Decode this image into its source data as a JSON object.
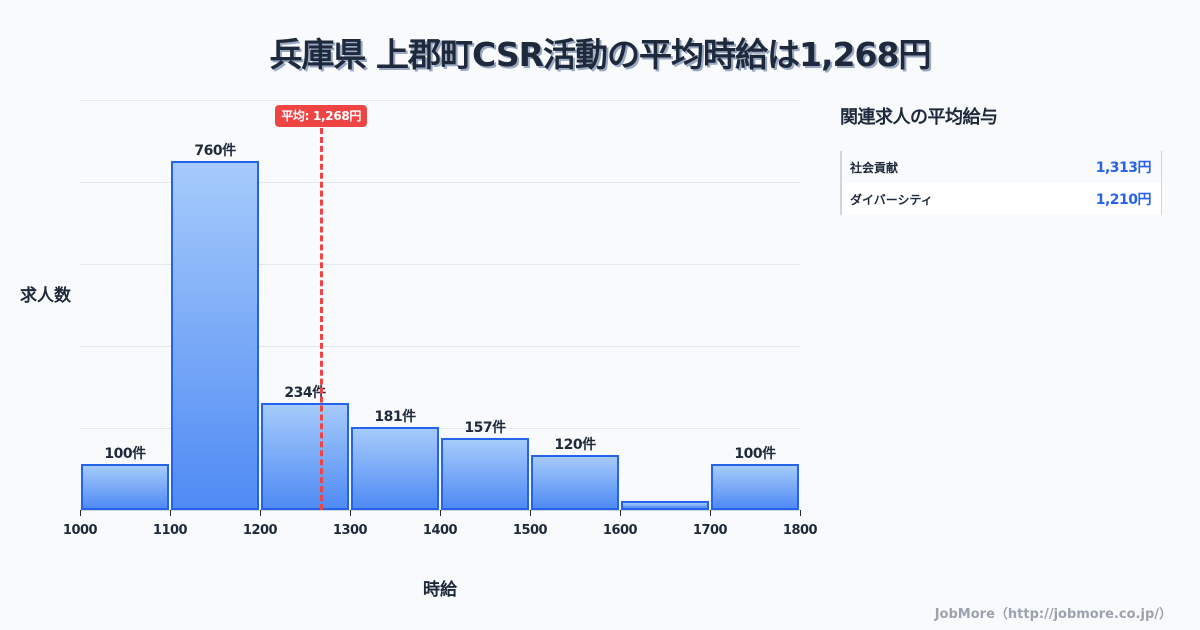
{
  "title": "兵庫県 上郡町CSR活動の平均時給は1,268円",
  "chart_data": {
    "type": "bar",
    "title": "兵庫県 上郡町CSR活動の平均時給は1,268円",
    "xlabel": "時給",
    "ylabel": "求人数",
    "bins": [
      [
        1000,
        1100
      ],
      [
        1100,
        1200
      ],
      [
        1200,
        1300
      ],
      [
        1300,
        1400
      ],
      [
        1400,
        1500
      ],
      [
        1500,
        1600
      ],
      [
        1600,
        1700
      ],
      [
        1700,
        1800
      ]
    ],
    "categories": [
      "1000-1100",
      "1100-1200",
      "1200-1300",
      "1300-1400",
      "1400-1500",
      "1500-1600",
      "1600-1700",
      "1700-1800"
    ],
    "values": [
      100,
      760,
      234,
      181,
      157,
      120,
      20,
      100
    ],
    "labels": [
      "100件",
      "760件",
      "234件",
      "181件",
      "157件",
      "120件",
      "",
      "100件"
    ],
    "x_ticks": [
      "1000",
      "1100",
      "1200",
      "1300",
      "1400",
      "1500",
      "1600",
      "1700",
      "1800"
    ],
    "xlim": [
      1000,
      1800
    ],
    "ylim": [
      0,
      890
    ],
    "grid": true,
    "average": {
      "value": 1268,
      "label": "平均: 1,268円"
    }
  },
  "side_panel": {
    "title": "関連求人の平均給与",
    "rows": [
      {
        "name": "社会貢献",
        "value": "1,313円"
      },
      {
        "name": "ダイバーシティ",
        "value": "1,210円"
      }
    ]
  },
  "footer": "JobMore（http://jobmore.co.jp/）",
  "colors": {
    "bar": "#4f8bf4",
    "bar_border": "#2563eb",
    "average": "#ef4444",
    "value_text": "#2563eb"
  }
}
